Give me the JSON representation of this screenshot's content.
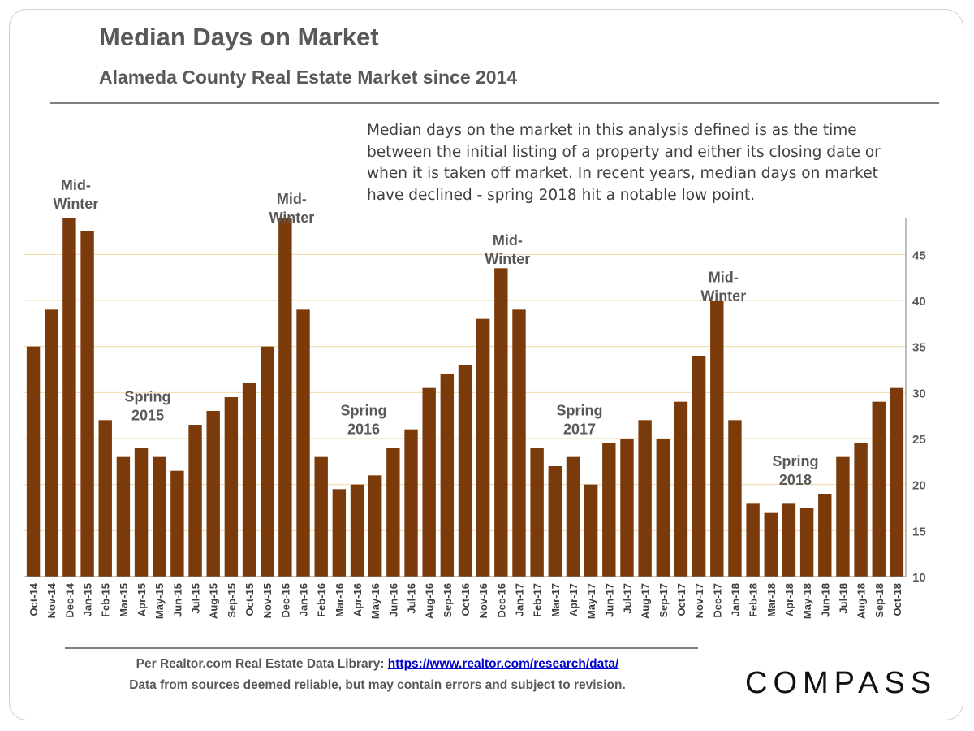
{
  "header": {
    "title": "Median Days on Market",
    "subtitle": "Alameda County Real Estate Market since 2014"
  },
  "note": "Median days on the market in this analysis defined is as the time between the initial listing of a property and either its closing date or when it is taken off market. In recent years, median  days on market  have declined - spring 2018 hit a notable low point.",
  "footer": {
    "source_prefix": "Per Realtor.com Real Estate  Data Library: ",
    "source_link": "https://www.realtor.com/research/data/",
    "disclaimer": "Data from sources  deemed reliable, but may contain errors and subject to revision."
  },
  "brand": {
    "logo_text": "COMPASS"
  },
  "colors": {
    "bar": "#7b3a0a",
    "grid": "#f0d9a8",
    "label": "#595959"
  },
  "chart_data": {
    "type": "bar",
    "title": "Median Days on Market",
    "subtitle": "Alameda County Real Estate Market since 2014",
    "xlabel": "",
    "ylabel": "",
    "ylim": [
      10,
      49
    ],
    "yticks": [
      10,
      15,
      20,
      25,
      30,
      35,
      40,
      45
    ],
    "y_axis_side": "right",
    "grid": true,
    "categories": [
      "Oct-14",
      "Nov-14",
      "Dec-14",
      "Jan-15",
      "Feb-15",
      "Mar-15",
      "Apr-15",
      "May-15",
      "Jun-15",
      "Jul-15",
      "Aug-15",
      "Sep-15",
      "Oct-15",
      "Nov-15",
      "Dec-15",
      "Jan-16",
      "Feb-16",
      "Mar-16",
      "Apr-16",
      "May-16",
      "Jun-16",
      "Jul-16",
      "Aug-16",
      "Sep-16",
      "Oct-16",
      "Nov-16",
      "Dec-16",
      "Jan-17",
      "Feb-17",
      "Mar-17",
      "Apr-17",
      "May-17",
      "Jun-17",
      "Jul-17",
      "Aug-17",
      "Sep-17",
      "Oct-17",
      "Nov-17",
      "Dec-17",
      "Jan-18",
      "Feb-18",
      "Mar-18",
      "Apr-18",
      "May-18",
      "Jun-18",
      "Jul-18",
      "Aug-18",
      "Sep-18",
      "Oct-18"
    ],
    "values": [
      35,
      39,
      49,
      47.5,
      27,
      23,
      24,
      23,
      21.5,
      26.5,
      28,
      29.5,
      31,
      35,
      49,
      39,
      23,
      19.5,
      20,
      21,
      24,
      26,
      30.5,
      32,
      33,
      38,
      43.5,
      39,
      24,
      22,
      23,
      20,
      24.5,
      25,
      27,
      25,
      29,
      34,
      40,
      27,
      18,
      17,
      18,
      17.5,
      19,
      23,
      24.5,
      29,
      30.5
    ],
    "annotations": [
      {
        "text": [
          "Mid-",
          "Winter"
        ],
        "category": "Dec-14",
        "y": 52
      },
      {
        "text": [
          "Spring",
          "2015"
        ],
        "category": "Apr-15",
        "y": 29
      },
      {
        "text": [
          "Mid-",
          "Winter"
        ],
        "category": "Dec-15",
        "y": 50.5
      },
      {
        "text": [
          "Spring",
          "2016"
        ],
        "category": "Apr-16",
        "y": 27.5
      },
      {
        "text": [
          "Mid-",
          "Winter"
        ],
        "category": "Dec-16",
        "y": 46
      },
      {
        "text": [
          "Spring",
          "2017"
        ],
        "category": "Apr-17",
        "y": 27.5
      },
      {
        "text": [
          "Mid-",
          "Winter"
        ],
        "category": "Dec-17",
        "y": 42
      },
      {
        "text": [
          "Spring",
          "2018"
        ],
        "category": "Apr-18",
        "y": 22
      }
    ]
  }
}
